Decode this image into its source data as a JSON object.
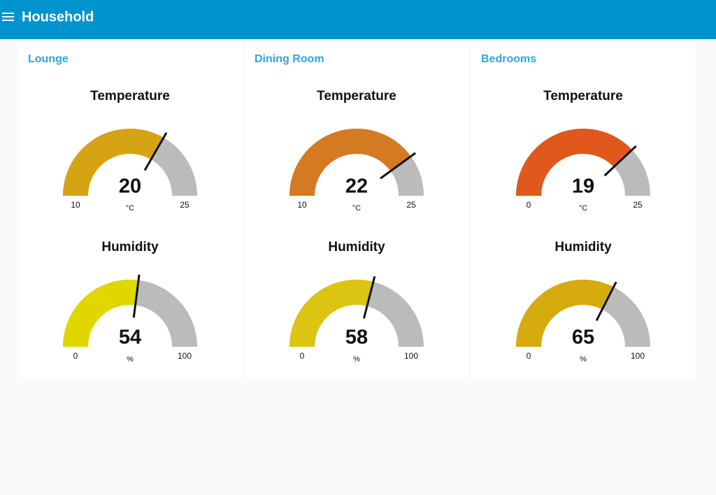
{
  "header": {
    "title": "Household"
  },
  "groups": [
    {
      "title": "Lounge",
      "gauges": [
        {
          "title": "Temperature",
          "value": 20,
          "min": 10,
          "max": 25,
          "unit": "°C",
          "color": "#d6a315"
        },
        {
          "title": "Humidity",
          "value": 54,
          "min": 0,
          "max": 100,
          "unit": "%",
          "color": "#e0d600"
        }
      ]
    },
    {
      "title": "Dining Room",
      "gauges": [
        {
          "title": "Temperature",
          "value": 22,
          "min": 10,
          "max": 25,
          "unit": "°C",
          "color": "#d47a22"
        },
        {
          "title": "Humidity",
          "value": 58,
          "min": 0,
          "max": 100,
          "unit": "%",
          "color": "#dcc512"
        }
      ]
    },
    {
      "title": "Bedrooms",
      "gauges": [
        {
          "title": "Temperature",
          "value": 19,
          "min": 0,
          "max": 25,
          "unit": "°C",
          "color": "#e0581c"
        },
        {
          "title": "Humidity",
          "value": 65,
          "min": 0,
          "max": 100,
          "unit": "%",
          "color": "#d6ab10"
        }
      ]
    }
  ]
}
